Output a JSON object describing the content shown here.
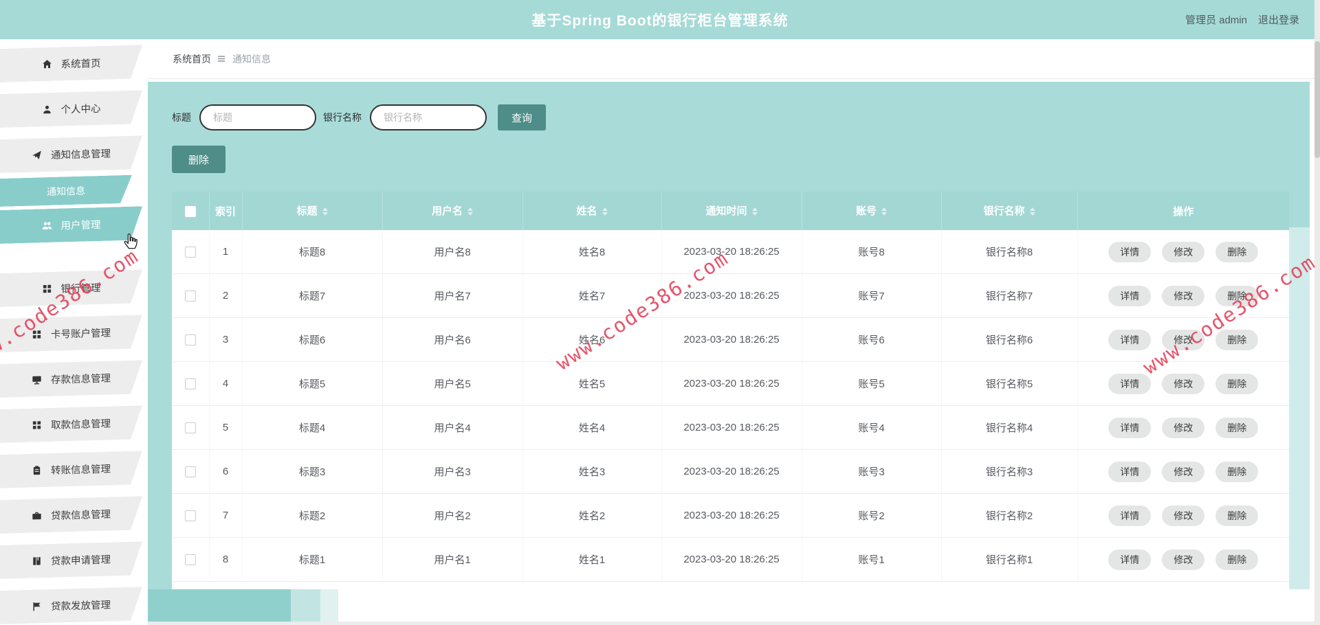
{
  "app": {
    "title": "基于Spring Boot的银行柜台管理系统",
    "admin_label": "管理员 admin",
    "logout_label": "退出登录"
  },
  "breadcrumb": {
    "home": "系统首页",
    "current": "通知信息"
  },
  "sidebar": {
    "items": [
      {
        "label": "系统首页",
        "icon": "home-icon",
        "type": "item",
        "active": false
      },
      {
        "label": "个人中心",
        "icon": "user-icon",
        "type": "item",
        "active": false
      },
      {
        "label": "通知信息管理",
        "icon": "send-icon",
        "type": "item",
        "active": false
      },
      {
        "label": "通知信息",
        "icon": "",
        "type": "subitem",
        "active": true
      },
      {
        "label": "用户管理",
        "icon": "users-icon",
        "type": "item",
        "active": true
      },
      {
        "label": "银行管理",
        "icon": "grid-icon",
        "type": "item",
        "active": false
      },
      {
        "label": "卡号账户管理",
        "icon": "grid-icon",
        "type": "item",
        "active": false
      },
      {
        "label": "存款信息管理",
        "icon": "monitor-icon",
        "type": "item",
        "active": false
      },
      {
        "label": "取款信息管理",
        "icon": "grid-icon",
        "type": "item",
        "active": false
      },
      {
        "label": "转账信息管理",
        "icon": "clipboard-icon",
        "type": "item",
        "active": false
      },
      {
        "label": "贷款信息管理",
        "icon": "briefcase-icon",
        "type": "item",
        "active": false
      },
      {
        "label": "贷款申请管理",
        "icon": "book-icon",
        "type": "item",
        "active": false
      },
      {
        "label": "贷款发放管理",
        "icon": "flag-icon",
        "type": "item",
        "active": false
      }
    ]
  },
  "filters": {
    "title_label": "标题",
    "title_placeholder": "标题",
    "bank_label": "银行名称",
    "bank_placeholder": "银行名称",
    "search_label": "查询",
    "delete_label": "删除"
  },
  "table": {
    "columns": [
      {
        "label": "索引",
        "sortable": false
      },
      {
        "label": "标题",
        "sortable": true
      },
      {
        "label": "用户名",
        "sortable": true
      },
      {
        "label": "姓名",
        "sortable": true
      },
      {
        "label": "通知时间",
        "sortable": true
      },
      {
        "label": "账号",
        "sortable": true
      },
      {
        "label": "银行名称",
        "sortable": true
      },
      {
        "label": "操作",
        "sortable": false
      }
    ],
    "rows": [
      {
        "index": "1",
        "title": "标题8",
        "username": "用户名8",
        "name": "姓名8",
        "time": "2023-03-20 18:26:25",
        "account": "账号8",
        "bank": "银行名称8"
      },
      {
        "index": "2",
        "title": "标题7",
        "username": "用户名7",
        "name": "姓名7",
        "time": "2023-03-20 18:26:25",
        "account": "账号7",
        "bank": "银行名称7"
      },
      {
        "index": "3",
        "title": "标题6",
        "username": "用户名6",
        "name": "姓名6",
        "time": "2023-03-20 18:26:25",
        "account": "账号6",
        "bank": "银行名称6"
      },
      {
        "index": "4",
        "title": "标题5",
        "username": "用户名5",
        "name": "姓名5",
        "time": "2023-03-20 18:26:25",
        "account": "账号5",
        "bank": "银行名称5"
      },
      {
        "index": "5",
        "title": "标题4",
        "username": "用户名4",
        "name": "姓名4",
        "time": "2023-03-20 18:26:25",
        "account": "账号4",
        "bank": "银行名称4"
      },
      {
        "index": "6",
        "title": "标题3",
        "username": "用户名3",
        "name": "姓名3",
        "time": "2023-03-20 18:26:25",
        "account": "账号3",
        "bank": "银行名称3"
      },
      {
        "index": "7",
        "title": "标题2",
        "username": "用户名2",
        "name": "姓名2",
        "time": "2023-03-20 18:26:25",
        "account": "账号2",
        "bank": "银行名称2"
      },
      {
        "index": "8",
        "title": "标题1",
        "username": "用户名1",
        "name": "姓名1",
        "time": "2023-03-20 18:26:25",
        "account": "账号1",
        "bank": "银行名称1"
      }
    ],
    "row_actions": [
      "详情",
      "修改",
      "删除"
    ]
  },
  "watermark": {
    "text": "www.code386.com"
  },
  "colors": {
    "topbar_teal": "#a6dad7",
    "panel_teal": "#a9dcd9",
    "table_header_teal": "#a2d7d4",
    "active_item_teal": "#88cdca",
    "button_teal": "#4e8d88",
    "watermark_red": "#e23c55"
  }
}
